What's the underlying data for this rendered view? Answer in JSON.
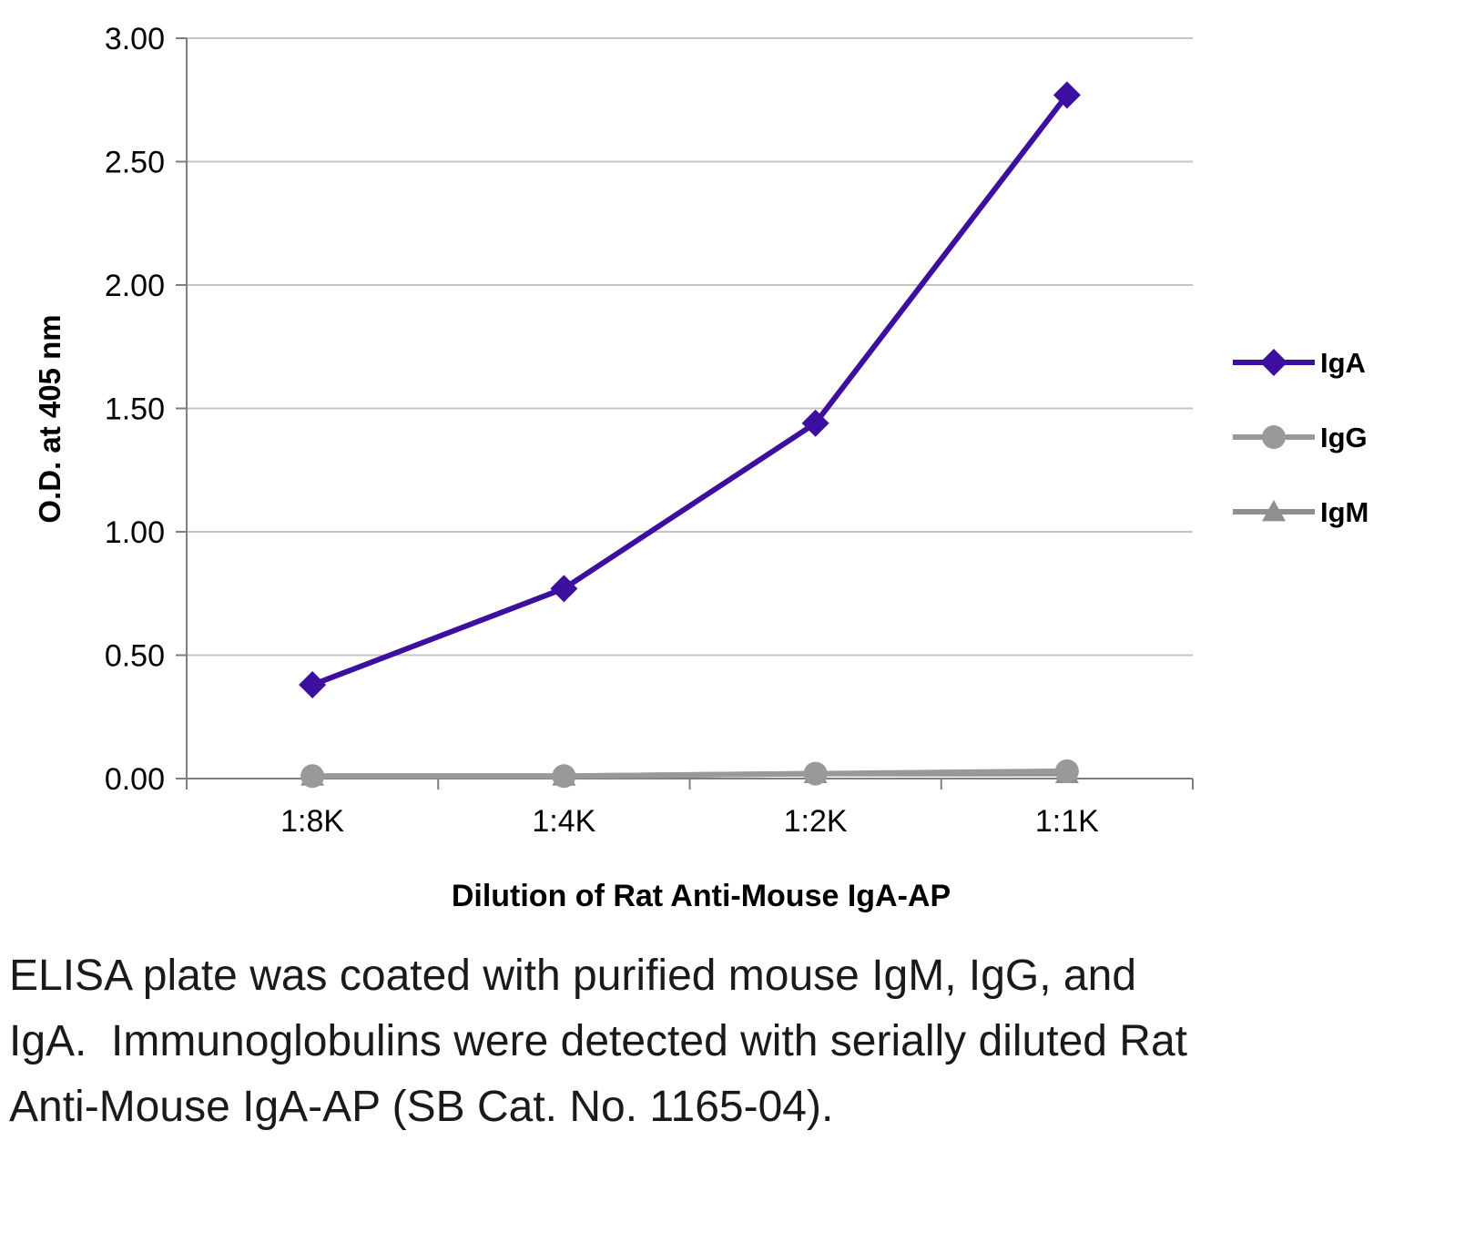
{
  "figure": {
    "background": "#ffffff"
  },
  "caption": "ELISA plate was coated with purified mouse IgM, IgG, and IgA.  Immunoglobulins were detected with serially diluted Rat Anti-Mouse IgA-AP (SB Cat. No. 1165-04).",
  "chart_data": {
    "type": "line",
    "title": "",
    "categories": [
      "1:8K",
      "1:4K",
      "1:2K",
      "1:1K"
    ],
    "series": [
      {
        "name": "IgA",
        "marker": "diamond",
        "color": "#3d0f9e",
        "values": [
          0.38,
          0.77,
          1.44,
          2.77
        ]
      },
      {
        "name": "IgG",
        "marker": "circle",
        "color": "#999999",
        "values": [
          0.01,
          0.01,
          0.02,
          0.03
        ]
      },
      {
        "name": "IgM",
        "marker": "triangle",
        "color": "#8f8f8f",
        "values": [
          0.01,
          0.01,
          0.02,
          0.02
        ]
      }
    ],
    "xlabel": "Dilution of Rat Anti-Mouse IgA-AP",
    "ylabel": "O.D. at 405 nm",
    "ylim": [
      0,
      3
    ],
    "yticks": [
      "0.00",
      "0.50",
      "1.00",
      "1.50",
      "2.00",
      "2.50",
      "3.00"
    ],
    "grid": true,
    "legend_position": "right",
    "colors": {
      "grid": "#c4c4c4",
      "axis": "#7f7f7f",
      "text": "#000000"
    }
  }
}
